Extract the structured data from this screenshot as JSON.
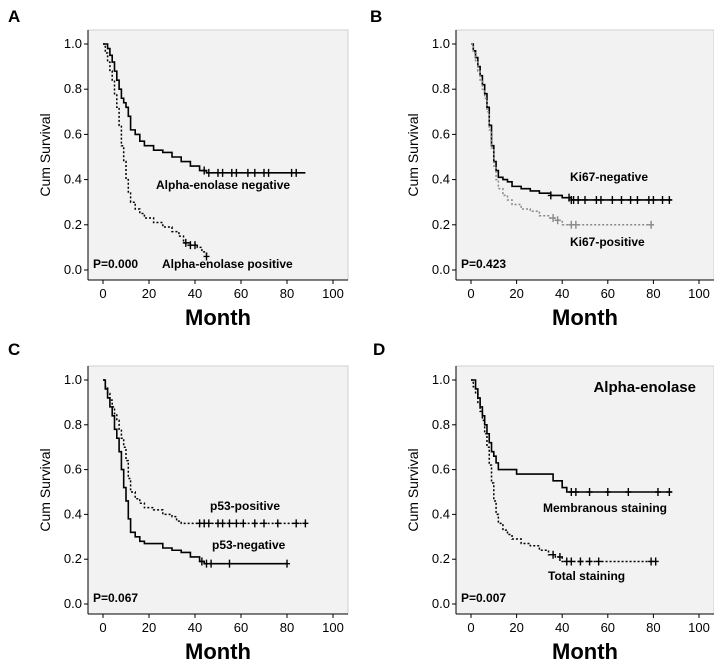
{
  "chart_data": [
    {
      "type": "line",
      "panel": "A",
      "title": "",
      "xlabel": "Month",
      "ylabel": "Cum Survival",
      "xlim": [
        0,
        100
      ],
      "ylim": [
        0,
        1
      ],
      "x_ticks": [
        "0",
        "20",
        "40",
        "60",
        "80",
        "100"
      ],
      "y_ticks": [
        "0.0",
        "0.2",
        "0.4",
        "0.6",
        "0.8",
        "1.0"
      ],
      "pvalue": "P=0.000",
      "series": [
        {
          "name": "Alpha-enolase negative",
          "style": "solid",
          "color": "#000000",
          "x": [
            0,
            2,
            3,
            4,
            5,
            6,
            7,
            8,
            9,
            10,
            11,
            12,
            14,
            16,
            18,
            22,
            26,
            30,
            34,
            38,
            42,
            45,
            88
          ],
          "y": [
            1.0,
            0.98,
            0.95,
            0.92,
            0.88,
            0.84,
            0.8,
            0.76,
            0.74,
            0.72,
            0.68,
            0.62,
            0.6,
            0.57,
            0.55,
            0.53,
            0.52,
            0.5,
            0.48,
            0.46,
            0.44,
            0.43,
            0.43
          ],
          "censor_x": [
            44,
            46,
            50,
            52,
            56,
            58,
            63,
            66,
            70,
            72,
            82,
            84
          ]
        },
        {
          "name": "Alpha-enolase positive",
          "style": "dotted",
          "color": "#000000",
          "x": [
            0,
            1,
            2,
            3,
            4,
            5,
            6,
            7,
            8,
            9,
            10,
            11,
            12,
            14,
            16,
            18,
            22,
            26,
            30,
            33,
            35,
            38,
            41,
            43,
            45
          ],
          "y": [
            1.0,
            0.96,
            0.92,
            0.88,
            0.84,
            0.78,
            0.72,
            0.64,
            0.55,
            0.48,
            0.4,
            0.34,
            0.3,
            0.27,
            0.25,
            0.23,
            0.21,
            0.19,
            0.17,
            0.15,
            0.12,
            0.11,
            0.1,
            0.08,
            0.06
          ],
          "censor_x": [
            36,
            38,
            40,
            45
          ]
        }
      ]
    },
    {
      "type": "line",
      "panel": "B",
      "title": "",
      "xlabel": "Month",
      "ylabel": "Cum Survival",
      "xlim": [
        0,
        100
      ],
      "ylim": [
        0,
        1
      ],
      "x_ticks": [
        "0",
        "20",
        "40",
        "60",
        "80",
        "100"
      ],
      "y_ticks": [
        "0.0",
        "0.2",
        "0.4",
        "0.6",
        "0.8",
        "1.0"
      ],
      "pvalue": "P=0.423",
      "series": [
        {
          "name": "Ki67-negative",
          "style": "solid",
          "color": "#000000",
          "x": [
            0,
            1,
            2,
            3,
            4,
            5,
            6,
            7,
            8,
            9,
            10,
            11,
            12,
            14,
            16,
            18,
            22,
            26,
            30,
            35,
            40,
            44,
            88
          ],
          "y": [
            1.0,
            0.97,
            0.94,
            0.9,
            0.86,
            0.82,
            0.78,
            0.72,
            0.64,
            0.55,
            0.48,
            0.44,
            0.41,
            0.4,
            0.39,
            0.37,
            0.36,
            0.35,
            0.34,
            0.33,
            0.32,
            0.31,
            0.31
          ],
          "censor_x": [
            35,
            43,
            44,
            45,
            47,
            50,
            55,
            57,
            62,
            66,
            70,
            73,
            78,
            80,
            84,
            87
          ]
        },
        {
          "name": "Ki67-positive",
          "style": "dotted",
          "color": "#888888",
          "x": [
            0,
            1,
            2,
            3,
            4,
            5,
            6,
            7,
            8,
            9,
            10,
            11,
            12,
            14,
            16,
            18,
            22,
            26,
            30,
            34,
            37,
            40,
            80
          ],
          "y": [
            1.0,
            0.96,
            0.92,
            0.88,
            0.84,
            0.8,
            0.76,
            0.7,
            0.62,
            0.54,
            0.46,
            0.4,
            0.36,
            0.33,
            0.31,
            0.29,
            0.27,
            0.26,
            0.24,
            0.23,
            0.22,
            0.2,
            0.2
          ],
          "censor_x": [
            36,
            38,
            44,
            46,
            79
          ]
        }
      ]
    },
    {
      "type": "line",
      "panel": "C",
      "title": "",
      "xlabel": "Month",
      "ylabel": "Cum Survival",
      "xlim": [
        0,
        100
      ],
      "ylim": [
        0,
        1
      ],
      "x_ticks": [
        "0",
        "20",
        "40",
        "60",
        "80",
        "100"
      ],
      "y_ticks": [
        "0.0",
        "0.2",
        "0.4",
        "0.6",
        "0.8",
        "1.0"
      ],
      "pvalue": "P=0.067",
      "series": [
        {
          "name": "p53-positive",
          "style": "dotted",
          "color": "#000000",
          "x": [
            0,
            1,
            2,
            3,
            4,
            5,
            6,
            7,
            8,
            9,
            10,
            11,
            12,
            14,
            16,
            18,
            22,
            26,
            30,
            32,
            34,
            88
          ],
          "y": [
            1.0,
            0.97,
            0.94,
            0.91,
            0.88,
            0.85,
            0.82,
            0.78,
            0.74,
            0.7,
            0.64,
            0.56,
            0.5,
            0.47,
            0.45,
            0.43,
            0.42,
            0.4,
            0.39,
            0.37,
            0.36,
            0.36
          ],
          "censor_x": [
            42,
            44,
            46,
            50,
            52,
            55,
            58,
            61,
            66,
            70,
            76,
            84,
            88
          ]
        },
        {
          "name": "p53-negative",
          "style": "solid",
          "color": "#000000",
          "x": [
            0,
            1,
            2,
            3,
            4,
            5,
            6,
            7,
            8,
            9,
            10,
            11,
            12,
            14,
            16,
            18,
            22,
            26,
            30,
            34,
            38,
            42,
            44,
            80
          ],
          "y": [
            1.0,
            0.96,
            0.92,
            0.88,
            0.84,
            0.78,
            0.74,
            0.68,
            0.6,
            0.52,
            0.46,
            0.38,
            0.32,
            0.3,
            0.28,
            0.27,
            0.27,
            0.25,
            0.24,
            0.23,
            0.21,
            0.19,
            0.18,
            0.18
          ],
          "censor_x": [
            43,
            45,
            47,
            55,
            80
          ]
        }
      ]
    },
    {
      "type": "line",
      "panel": "D",
      "title": "Alpha-enolase",
      "xlabel": "Month",
      "ylabel": "Cum Survival",
      "xlim": [
        0,
        100
      ],
      "ylim": [
        0,
        1
      ],
      "x_ticks": [
        "0",
        "20",
        "40",
        "60",
        "80",
        "100"
      ],
      "y_ticks": [
        "0.0",
        "0.2",
        "0.4",
        "0.6",
        "0.8",
        "1.0"
      ],
      "pvalue": "P=0.007",
      "series": [
        {
          "name": "Membranous staining",
          "style": "solid",
          "color": "#000000",
          "x": [
            0,
            2,
            3,
            4,
            5,
            6,
            7,
            8,
            9,
            10,
            11,
            12,
            20,
            25,
            36,
            40,
            42,
            88
          ],
          "y": [
            1.0,
            0.96,
            0.92,
            0.88,
            0.84,
            0.8,
            0.76,
            0.72,
            0.68,
            0.66,
            0.63,
            0.6,
            0.58,
            0.58,
            0.55,
            0.52,
            0.5,
            0.5
          ],
          "censor_x": [
            44,
            46,
            52,
            60,
            69,
            82,
            87
          ]
        },
        {
          "name": "Total staining",
          "style": "dotted",
          "color": "#000000",
          "x": [
            0,
            1,
            2,
            3,
            4,
            5,
            6,
            7,
            8,
            9,
            10,
            11,
            12,
            14,
            16,
            18,
            22,
            26,
            30,
            34,
            37,
            40,
            80
          ],
          "y": [
            1.0,
            0.97,
            0.94,
            0.9,
            0.86,
            0.82,
            0.76,
            0.7,
            0.62,
            0.54,
            0.46,
            0.4,
            0.36,
            0.33,
            0.31,
            0.29,
            0.27,
            0.26,
            0.24,
            0.22,
            0.21,
            0.19,
            0.19
          ],
          "censor_x": [
            36,
            39,
            42,
            44,
            48,
            52,
            56,
            79,
            81
          ]
        }
      ]
    }
  ]
}
